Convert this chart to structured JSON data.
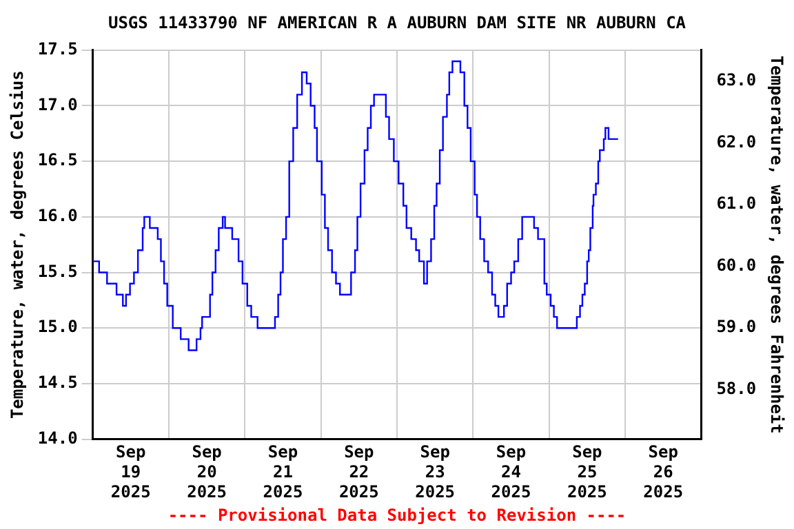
{
  "chart_data": {
    "type": "step",
    "title": "USGS 11433790 NF AMERICAN R A AUBURN DAM SITE NR AUBURN CA",
    "ylabel": "Temperature, water, degrees Celsius",
    "y2label": "Temperature, water, degrees Fahrenheit",
    "annotations": [
      "---- Provisional Data Subject to Revision ----"
    ],
    "x": [
      "2025-09-19T00:00",
      "2025-09-19T02:00",
      "2025-09-19T04:30",
      "2025-09-19T07:30",
      "2025-09-19T09:30",
      "2025-09-19T10:30",
      "2025-09-19T11:45",
      "2025-09-19T13:00",
      "2025-09-19T14:15",
      "2025-09-19T15:45",
      "2025-09-19T16:15",
      "2025-09-19T18:00",
      "2025-09-19T20:30",
      "2025-09-19T21:30",
      "2025-09-19T22:30",
      "2025-09-19T23:30",
      "2025-09-20T01:15",
      "2025-09-20T03:45",
      "2025-09-20T06:15",
      "2025-09-20T08:45",
      "2025-09-20T10:00",
      "2025-09-20T10:30",
      "2025-09-20T13:00",
      "2025-09-20T13:45",
      "2025-09-20T14:45",
      "2025-09-20T15:45",
      "2025-09-20T17:00",
      "2025-09-20T17:45",
      "2025-09-20T20:00",
      "2025-09-20T22:00",
      "2025-09-20T23:15",
      "2025-09-21T00:45",
      "2025-09-21T02:00",
      "2025-09-21T04:00",
      "2025-09-21T09:30",
      "2025-09-21T10:30",
      "2025-09-21T11:15",
      "2025-09-21T12:00",
      "2025-09-21T13:00",
      "2025-09-21T14:00",
      "2025-09-21T15:15",
      "2025-09-21T16:30",
      "2025-09-21T18:00",
      "2025-09-21T19:30",
      "2025-09-21T20:45",
      "2025-09-21T22:00",
      "2025-09-21T22:45",
      "2025-09-22T00:15",
      "2025-09-22T01:15",
      "2025-09-22T02:15",
      "2025-09-22T03:30",
      "2025-09-22T04:45",
      "2025-09-22T06:00",
      "2025-09-22T09:30",
      "2025-09-22T10:45",
      "2025-09-22T11:30",
      "2025-09-22T12:30",
      "2025-09-22T13:45",
      "2025-09-22T14:45",
      "2025-09-22T15:45",
      "2025-09-22T16:45",
      "2025-09-22T20:30",
      "2025-09-22T21:30",
      "2025-09-22T23:00",
      "2025-09-23T00:30",
      "2025-09-23T02:00",
      "2025-09-23T03:00",
      "2025-09-23T04:30",
      "2025-09-23T06:00",
      "2025-09-23T07:00",
      "2025-09-23T08:30",
      "2025-09-23T09:30",
      "2025-09-23T10:45",
      "2025-09-23T11:45",
      "2025-09-23T12:30",
      "2025-09-23T13:30",
      "2025-09-23T14:30",
      "2025-09-23T15:45",
      "2025-09-23T16:30",
      "2025-09-23T17:30",
      "2025-09-23T20:00",
      "2025-09-23T21:15",
      "2025-09-23T22:15",
      "2025-09-23T23:15",
      "2025-09-24T00:30",
      "2025-09-24T01:15",
      "2025-09-24T02:15",
      "2025-09-24T03:30",
      "2025-09-24T04:45",
      "2025-09-24T06:00",
      "2025-09-24T07:00",
      "2025-09-24T08:00",
      "2025-09-24T09:45",
      "2025-09-24T10:45",
      "2025-09-24T12:00",
      "2025-09-24T13:00",
      "2025-09-24T14:15",
      "2025-09-24T15:30",
      "2025-09-24T19:15",
      "2025-09-24T20:30",
      "2025-09-24T22:30",
      "2025-09-24T23:15",
      "2025-09-25T00:30",
      "2025-09-25T01:30",
      "2025-09-25T02:30",
      "2025-09-25T08:45",
      "2025-09-25T09:45",
      "2025-09-25T10:30",
      "2025-09-25T11:15",
      "2025-09-25T12:00",
      "2025-09-25T12:30",
      "2025-09-25T13:00",
      "2025-09-25T13:45",
      "2025-09-25T14:00",
      "2025-09-25T14:45",
      "2025-09-25T15:30",
      "2025-09-25T16:00",
      "2025-09-25T17:15",
      "2025-09-25T17:45",
      "2025-09-25T18:45",
      "2025-09-25T21:45"
    ],
    "series": [
      {
        "color": "#0000ff",
        "values": [
          15.6,
          15.5,
          15.4,
          15.3,
          15.2,
          15.3,
          15.4,
          15.5,
          15.7,
          15.9,
          16.0,
          15.9,
          15.8,
          15.6,
          15.4,
          15.2,
          15.0,
          14.9,
          14.8,
          14.9,
          15.0,
          15.1,
          15.3,
          15.5,
          15.7,
          15.9,
          16.0,
          15.9,
          15.8,
          15.6,
          15.4,
          15.2,
          15.1,
          15.0,
          15.1,
          15.3,
          15.5,
          15.8,
          16.0,
          16.5,
          16.8,
          17.1,
          17.3,
          17.2,
          17.0,
          16.8,
          16.5,
          16.2,
          15.9,
          15.7,
          15.5,
          15.4,
          15.3,
          15.5,
          15.7,
          16.0,
          16.3,
          16.6,
          16.8,
          17.0,
          17.1,
          16.9,
          16.7,
          16.5,
          16.3,
          16.1,
          15.9,
          15.8,
          15.7,
          15.6,
          15.4,
          15.6,
          15.8,
          16.1,
          16.3,
          16.6,
          16.9,
          17.1,
          17.3,
          17.4,
          17.3,
          17.0,
          16.8,
          16.5,
          16.2,
          16.0,
          15.8,
          15.6,
          15.5,
          15.3,
          15.2,
          15.1,
          15.2,
          15.4,
          15.5,
          15.6,
          15.8,
          16.0,
          15.9,
          15.8,
          15.4,
          15.3,
          15.2,
          15.1,
          15.0,
          15.1,
          15.2,
          15.3,
          15.4,
          15.6,
          15.7,
          15.9,
          16.1,
          16.2,
          16.3,
          16.5,
          16.6,
          16.7,
          16.8,
          16.7,
          16.7
        ]
      }
    ],
    "xlim": [
      "2025-09-19T00:00",
      "2025-09-27T00:00"
    ],
    "xticks": [
      {
        "value": "2025-09-19T12:00",
        "label": "Sep 19 2025"
      },
      {
        "value": "2025-09-20T00:00",
        "label": null
      },
      {
        "value": "2025-09-20T12:00",
        "label": "Sep 20 2025"
      },
      {
        "value": "2025-09-21T00:00",
        "label": null
      },
      {
        "value": "2025-09-21T12:00",
        "label": "Sep 21 2025"
      },
      {
        "value": "2025-09-22T00:00",
        "label": null
      },
      {
        "value": "2025-09-22T12:00",
        "label": "Sep 22 2025"
      },
      {
        "value": "2025-09-23T00:00",
        "label": null
      },
      {
        "value": "2025-09-23T12:00",
        "label": "Sep 23 2025"
      },
      {
        "value": "2025-09-24T00:00",
        "label": null
      },
      {
        "value": "2025-09-24T12:00",
        "label": "Sep 24 2025"
      },
      {
        "value": "2025-09-25T00:00",
        "label": null
      },
      {
        "value": "2025-09-25T12:00",
        "label": "Sep 25 2025"
      },
      {
        "value": "2025-09-26T00:00",
        "label": null
      },
      {
        "value": "2025-09-26T12:00",
        "label": "Sep 26 2025"
      }
    ],
    "ylim": [
      14.0,
      17.5
    ],
    "yticks": [
      {
        "value": 14.0,
        "label": "14.0"
      },
      {
        "value": 14.5,
        "label": "14.5"
      },
      {
        "value": 15.0,
        "label": "15.0"
      },
      {
        "value": 15.5,
        "label": "15.5"
      },
      {
        "value": 16.0,
        "label": "16.0"
      },
      {
        "value": 16.5,
        "label": "16.5"
      },
      {
        "value": 17.0,
        "label": "17.0"
      },
      {
        "value": 17.5,
        "label": "17.5"
      }
    ],
    "y2lim": [
      57.2,
      63.5
    ],
    "y2ticks": [
      {
        "value": 58,
        "label": "58.0"
      },
      {
        "value": 59,
        "label": "59.0"
      },
      {
        "value": 60,
        "label": "60.0"
      },
      {
        "value": 61,
        "label": "61.0"
      },
      {
        "value": 62,
        "label": "62.0"
      },
      {
        "value": 63,
        "label": "63.0"
      }
    ],
    "grid": true,
    "legend": false
  }
}
